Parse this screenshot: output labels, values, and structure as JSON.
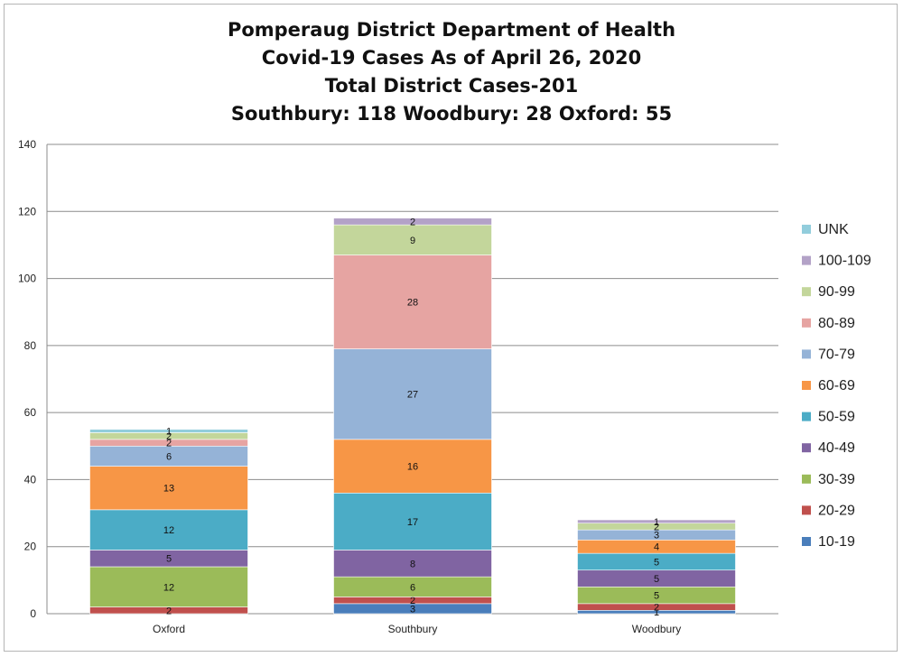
{
  "chart_data": {
    "type": "bar",
    "stacked": true,
    "title_lines": [
      "Pomperaug District Department of Health",
      "Covid-19 Cases As of April 26, 2020",
      "Total District Cases-201",
      "Southbury: 118 Woodbury: 28 Oxford: 55"
    ],
    "categories": [
      "Oxford",
      "Southbury",
      "Woodbury"
    ],
    "ylim": [
      0,
      140
    ],
    "yticks": [
      0,
      20,
      40,
      60,
      80,
      100,
      120,
      140
    ],
    "grid": true,
    "legend_position": "right",
    "series": [
      {
        "name": "10-19",
        "color": "#4a7ebb",
        "values": [
          0,
          3,
          1
        ]
      },
      {
        "name": "20-29",
        "color": "#c0504d",
        "values": [
          2,
          2,
          2
        ]
      },
      {
        "name": "30-39",
        "color": "#9bbb59",
        "values": [
          12,
          6,
          5
        ]
      },
      {
        "name": "40-49",
        "color": "#8064a2",
        "values": [
          5,
          8,
          5
        ]
      },
      {
        "name": "50-59",
        "color": "#4bacc6",
        "values": [
          12,
          17,
          5
        ]
      },
      {
        "name": "60-69",
        "color": "#f79646",
        "values": [
          13,
          16,
          4
        ]
      },
      {
        "name": "70-79",
        "color": "#95b3d7",
        "values": [
          6,
          27,
          3
        ]
      },
      {
        "name": "80-89",
        "color": "#e6a4a2",
        "values": [
          2,
          28,
          0
        ]
      },
      {
        "name": "90-99",
        "color": "#c3d69b",
        "values": [
          2,
          9,
          2
        ]
      },
      {
        "name": "100-109",
        "color": "#b3a2c7",
        "values": [
          0,
          2,
          1
        ]
      },
      {
        "name": "UNK",
        "color": "#92cddc",
        "values": [
          1,
          0,
          0
        ]
      }
    ]
  }
}
